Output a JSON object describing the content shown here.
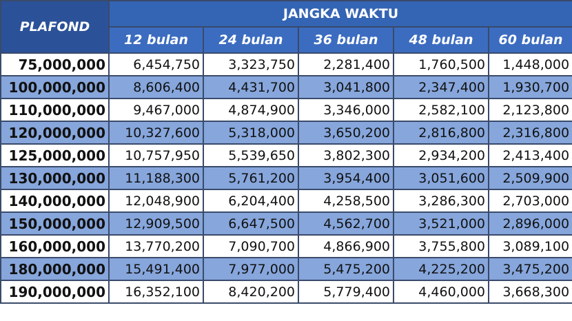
{
  "header": {
    "plafond": "PLAFOND",
    "group": "JANGKA WAKTU",
    "columns": [
      "12 bulan",
      "24 bulan",
      "36 bulan",
      "48 bulan",
      "60 bulan"
    ]
  },
  "table": {
    "rows": [
      [
        "75,000,000",
        "6,454,750",
        "3,323,750",
        "2,281,400",
        "1,760,500",
        "1,448,000"
      ],
      [
        "100,000,000",
        "8,606,400",
        "4,431,700",
        "3,041,800",
        "2,347,400",
        "1,930,700"
      ],
      [
        "110,000,000",
        "9,467,000",
        "4,874,900",
        "3,346,000",
        "2,582,100",
        "2,123,800"
      ],
      [
        "120,000,000",
        "10,327,600",
        "5,318,000",
        "3,650,200",
        "2,816,800",
        "2,316,800"
      ],
      [
        "125,000,000",
        "10,757,950",
        "5,539,650",
        "3,802,300",
        "2,934,200",
        "2,413,400"
      ],
      [
        "130,000,000",
        "11,188,300",
        "5,761,200",
        "3,954,400",
        "3,051,600",
        "2,509,900"
      ],
      [
        "140,000,000",
        "12,048,900",
        "6,204,400",
        "4,258,500",
        "3,286,300",
        "2,703,000"
      ],
      [
        "150,000,000",
        "12,909,500",
        "6,647,500",
        "4,562,700",
        "3,521,000",
        "2,896,000"
      ],
      [
        "160,000,000",
        "13,770,200",
        "7,090,700",
        "4,866,900",
        "3,755,800",
        "3,089,100"
      ],
      [
        "180,000,000",
        "15,491,400",
        "7,977,000",
        "5,475,200",
        "4,225,200",
        "3,475,200"
      ],
      [
        "190,000,000",
        "16,352,100",
        "8,420,200",
        "5,779,400",
        "4,460,000",
        "3,668,300"
      ]
    ]
  }
}
